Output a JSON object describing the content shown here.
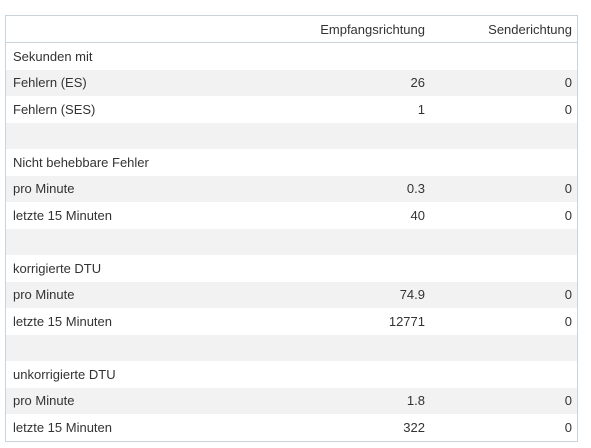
{
  "table": {
    "headers": {
      "label": "",
      "receive": "Empfangsrichtung",
      "send": "Senderichtung"
    },
    "rows": [
      {
        "label": "Sekunden mit",
        "receive": "",
        "send": ""
      },
      {
        "label": "Fehlern (ES)",
        "receive": "26",
        "send": "0"
      },
      {
        "label": "Fehlern (SES)",
        "receive": "1",
        "send": "0"
      },
      {
        "label": "",
        "receive": "",
        "send": ""
      },
      {
        "label": "Nicht behebbare Fehler",
        "receive": "",
        "send": ""
      },
      {
        "label": "pro Minute",
        "receive": "0.3",
        "send": "0"
      },
      {
        "label": "letzte 15 Minuten",
        "receive": "40",
        "send": "0"
      },
      {
        "label": "",
        "receive": "",
        "send": ""
      },
      {
        "label": "korrigierte DTU",
        "receive": "",
        "send": ""
      },
      {
        "label": "pro Minute",
        "receive": "74.9",
        "send": "0"
      },
      {
        "label": "letzte 15 Minuten",
        "receive": "12771",
        "send": "0"
      },
      {
        "label": "",
        "receive": "",
        "send": ""
      },
      {
        "label": "unkorrigierte DTU",
        "receive": "",
        "send": ""
      },
      {
        "label": "pro Minute",
        "receive": "1.8",
        "send": "0"
      },
      {
        "label": "letzte 15 Minuten",
        "receive": "322",
        "send": "0"
      }
    ]
  },
  "colors": {
    "row_shade": "#f2f2f2",
    "border": "#c9d3dc",
    "text": "#333333"
  }
}
